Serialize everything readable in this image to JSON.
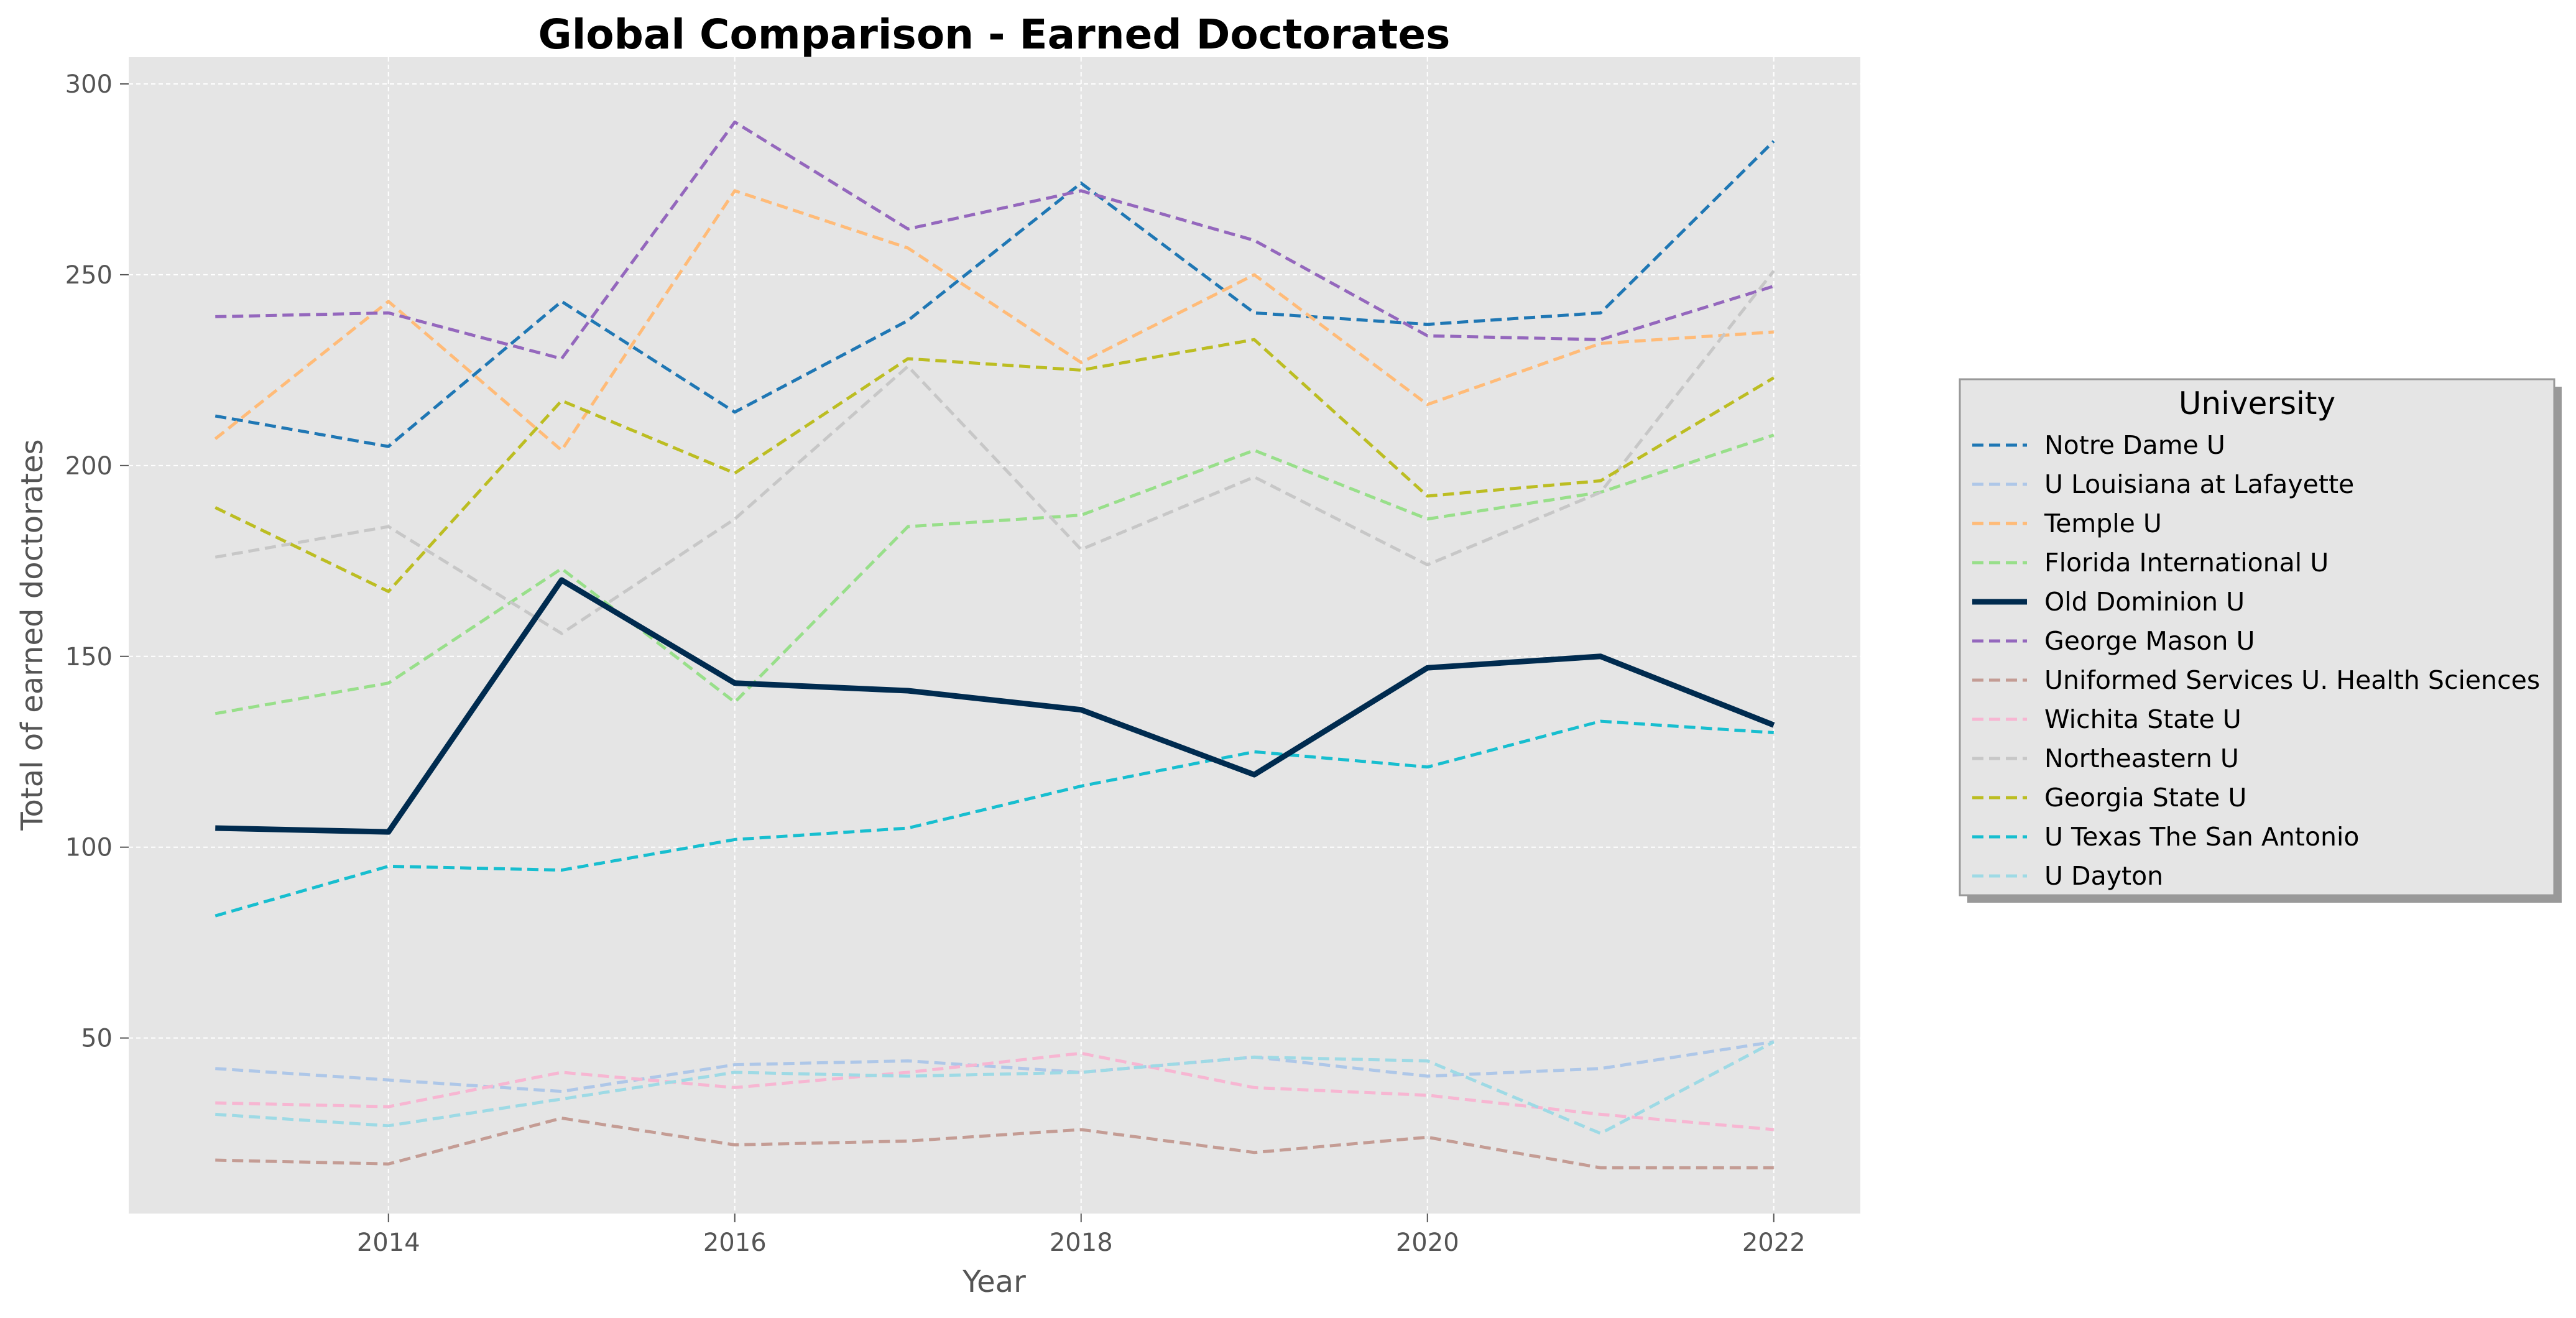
{
  "chart_data": {
    "type": "line",
    "title": "Global Comparison - Earned Doctorates",
    "xlabel": "Year",
    "ylabel": "Total of earned doctorates",
    "xlim": [
      2012.5,
      2022.5
    ],
    "ylim": [
      4,
      307
    ],
    "x_ticks": [
      "2014",
      "2016",
      "2018",
      "2020",
      "2022"
    ],
    "y_ticks": [
      "50",
      "100",
      "150",
      "200",
      "250",
      "300"
    ],
    "grid": true,
    "legend": {
      "title": "University",
      "placement": "right"
    },
    "x": [
      2013,
      2014,
      2015,
      2016,
      2017,
      2018,
      2019,
      2020,
      2021,
      2022
    ],
    "series": [
      {
        "name": "Notre Dame U",
        "color": "#1f77b4",
        "style": "dashed",
        "values": [
          213,
          205,
          243,
          214,
          238,
          274,
          240,
          237,
          240,
          285
        ]
      },
      {
        "name": "U Louisiana at Lafayette",
        "color": "#aec7e8",
        "style": "dashed",
        "values": [
          42,
          39,
          36,
          43,
          44,
          41,
          45,
          40,
          42,
          49
        ]
      },
      {
        "name": "Temple U",
        "color": "#ffbb78",
        "style": "dashed",
        "values": [
          207,
          243,
          204,
          272,
          257,
          227,
          250,
          216,
          232,
          235
        ]
      },
      {
        "name": "Florida International U",
        "color": "#98df8a",
        "style": "dashed",
        "values": [
          135,
          143,
          173,
          138,
          184,
          187,
          204,
          186,
          193,
          208
        ]
      },
      {
        "name": "Old Dominion U",
        "color": "#002b4f",
        "style": "solid",
        "values": [
          105,
          104,
          170,
          143,
          141,
          136,
          119,
          147,
          150,
          132
        ]
      },
      {
        "name": "George Mason U",
        "color": "#9467bd",
        "style": "dashed",
        "values": [
          239,
          240,
          228,
          290,
          262,
          272,
          259,
          234,
          233,
          247
        ]
      },
      {
        "name": "Uniformed Services U. Health Sciences",
        "color": "#c49c94",
        "style": "dashed",
        "values": [
          18,
          17,
          29,
          22,
          23,
          26,
          20,
          24,
          16,
          16
        ]
      },
      {
        "name": "Wichita State U",
        "color": "#f7b6d2",
        "style": "dashed",
        "values": [
          33,
          32,
          41,
          37,
          41,
          46,
          37,
          35,
          30,
          26
        ]
      },
      {
        "name": "Northeastern U",
        "color": "#c7c7c7",
        "style": "dashed",
        "values": [
          176,
          184,
          156,
          186,
          226,
          178,
          197,
          174,
          193,
          251
        ]
      },
      {
        "name": "Georgia State U",
        "color": "#bcbd22",
        "style": "dashed",
        "values": [
          189,
          167,
          217,
          198,
          228,
          225,
          233,
          192,
          196,
          223
        ]
      },
      {
        "name": "U Texas The San Antonio",
        "color": "#17becf",
        "style": "dashed",
        "values": [
          82,
          95,
          94,
          102,
          105,
          116,
          125,
          121,
          133,
          130
        ]
      },
      {
        "name": "U Dayton",
        "color": "#9edae5",
        "style": "dashed",
        "values": [
          30,
          27,
          34,
          41,
          40,
          41,
          45,
          44,
          25,
          49
        ]
      }
    ]
  },
  "colors": {
    "plot_background": "#e5e5e5",
    "grid": "#ffffff",
    "legend_background": "#e5e5e5",
    "legend_border": "#999999"
  }
}
